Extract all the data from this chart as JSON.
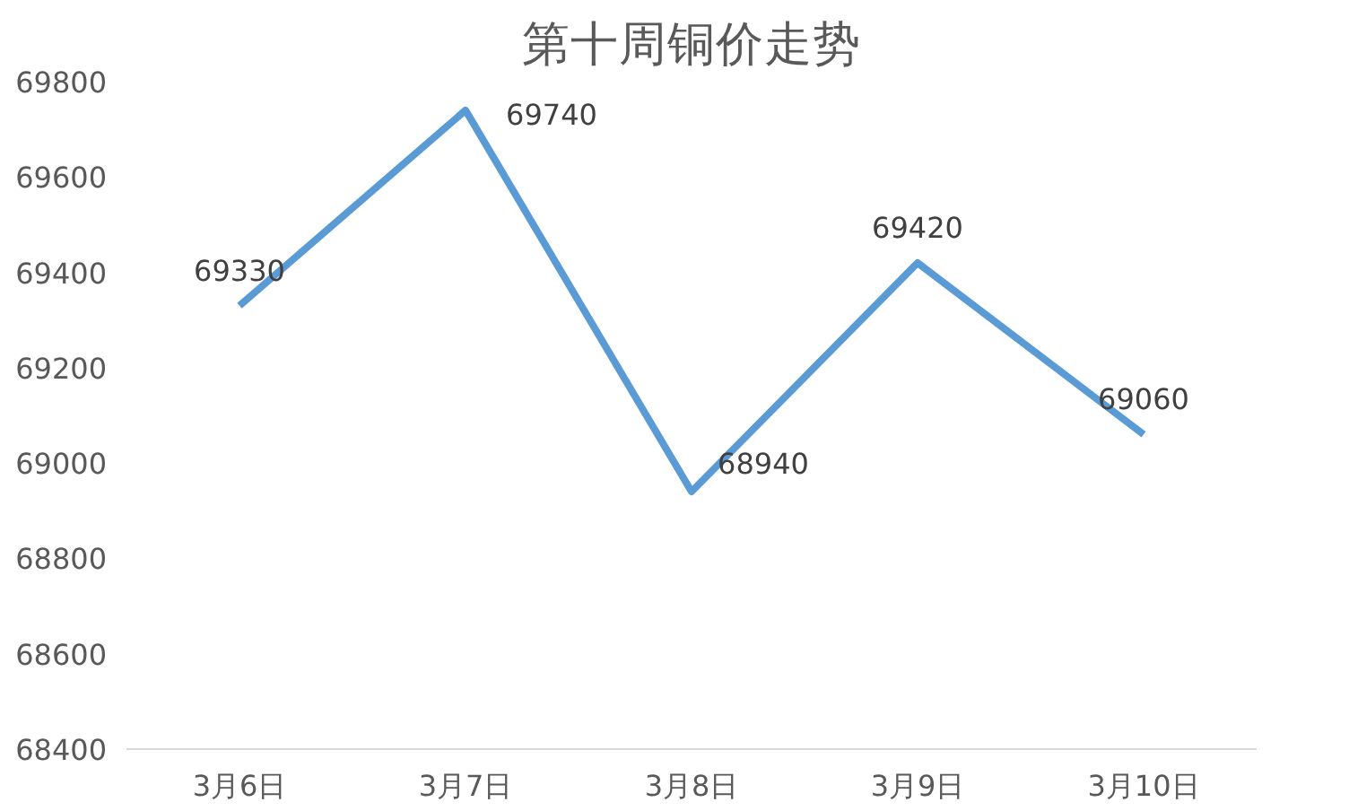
{
  "chart_data": {
    "type": "line",
    "title": "第十周铜价走势",
    "categories": [
      "3月6日",
      "3月7日",
      "3月8日",
      "3月9日",
      "3月10日"
    ],
    "series": [
      {
        "color": "#5b9bd5",
        "values": [
          69330,
          69740,
          68940,
          69420,
          69060
        ]
      }
    ],
    "ylim": [
      68400,
      69800
    ],
    "yticks": [
      68400,
      68600,
      68800,
      69000,
      69200,
      69400,
      69600,
      69800
    ],
    "grid": false,
    "data_labels": true,
    "marker": "none",
    "line_style": "solid"
  }
}
